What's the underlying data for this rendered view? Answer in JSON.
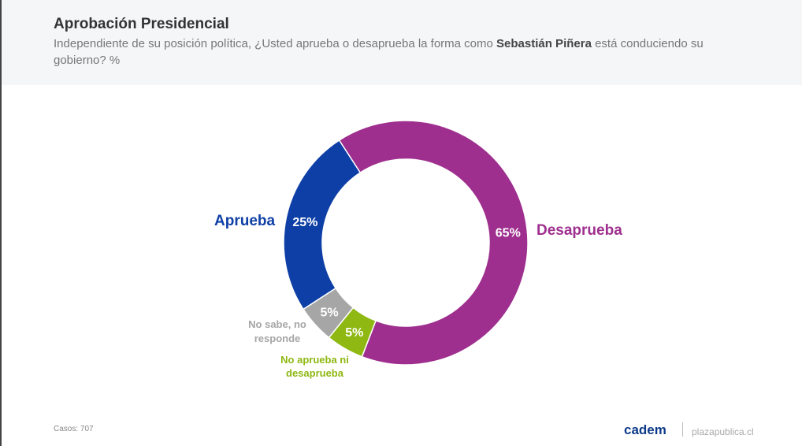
{
  "header": {
    "title": "Aprobación Presidencial",
    "subtitle_before": "Independiente de su posición política, ¿Usted aprueba o desaprueba la forma como ",
    "subtitle_bold": "Sebastián Piñera",
    "subtitle_after": " está conduciendo su gobierno? %"
  },
  "chart_data": {
    "type": "pie",
    "donut": true,
    "title": "Aprobación Presidencial",
    "slices": [
      {
        "label": "Desaprueba",
        "value": 65,
        "value_label": "65%",
        "color": "#9e2f8e"
      },
      {
        "label": "No aprueba ni desaprueba",
        "value": 5,
        "value_label": "5%",
        "color": "#8fb813"
      },
      {
        "label": "No sabe, no responde",
        "value": 5,
        "value_label": "5%",
        "color": "#a6a6a6"
      },
      {
        "label": "Aprueba",
        "value": 25,
        "value_label": "25%",
        "color": "#0d3fa6"
      }
    ]
  },
  "footer": {
    "cases": "Casos: 707",
    "brand": "cadem",
    "site": "plazapublica.cl"
  }
}
